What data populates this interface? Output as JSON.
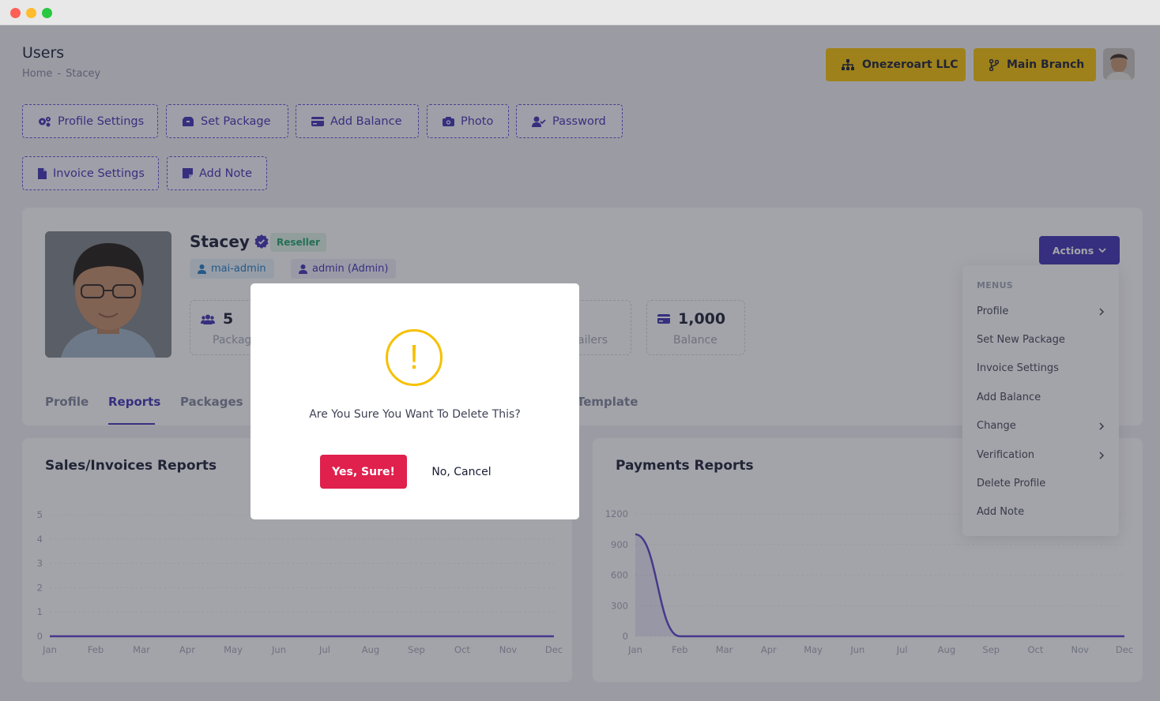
{
  "window": {
    "controls": [
      "close",
      "minimize",
      "maximize"
    ]
  },
  "header": {
    "title": "Users",
    "breadcrumb": [
      "Home",
      "-",
      "Stacey"
    ],
    "company_button": "Onezeroart LLC",
    "branch_button": "Main Branch",
    "accent_color": "#f6c000"
  },
  "toolbar": {
    "row1": [
      "Profile Settings",
      "Set Package",
      "Add Balance",
      "Photo",
      "Password"
    ],
    "row2": [
      "Invoice Settings",
      "Add Note"
    ],
    "accent_color": "#3e2fb5"
  },
  "profile": {
    "name": "Stacey",
    "role_badge": "Reseller",
    "chip_user": "mai-admin",
    "chip_admin": "admin (Admin)",
    "stats": [
      {
        "value": "5",
        "label": "Packag"
      },
      {
        "value": "",
        "label": "ailers"
      },
      {
        "value": "1,000",
        "label": "Balance"
      }
    ]
  },
  "tabs": [
    "Profile",
    "Reports",
    "Packages",
    "Template"
  ],
  "active_tab": "Reports",
  "actions": {
    "label": "Actions",
    "menu_header": "MENUS",
    "items": [
      {
        "label": "Profile",
        "submenu": true
      },
      {
        "label": "Set New Package",
        "submenu": false
      },
      {
        "label": "Invoice Settings",
        "submenu": false
      },
      {
        "label": "Add Balance",
        "submenu": false
      },
      {
        "label": "Change",
        "submenu": true
      },
      {
        "label": "Verification",
        "submenu": true
      },
      {
        "label": "Delete Profile",
        "submenu": false
      },
      {
        "label": "Add Note",
        "submenu": false
      }
    ]
  },
  "reports": {
    "sales_title": "Sales/Invoices Reports",
    "payments_title": "Payments Reports"
  },
  "chart_data": [
    {
      "type": "line",
      "title": "Sales/Invoices Reports",
      "categories": [
        "Jan",
        "Feb",
        "Mar",
        "Apr",
        "May",
        "Jun",
        "Jul",
        "Aug",
        "Sep",
        "Oct",
        "Nov",
        "Dec"
      ],
      "values": [
        0,
        0,
        0,
        0,
        0,
        0,
        0,
        0,
        0,
        0,
        0,
        0
      ],
      "yticks": [
        "5",
        "4",
        "3",
        "2",
        "1",
        "0"
      ],
      "ylim": [
        0,
        5
      ],
      "color": "#5b3fc9",
      "grid": true
    },
    {
      "type": "area",
      "title": "Payments Reports",
      "categories": [
        "Jan",
        "Feb",
        "Mar",
        "Apr",
        "May",
        "Jun",
        "Jul",
        "Aug",
        "Sep",
        "Oct",
        "Nov",
        "Dec"
      ],
      "values": [
        1000,
        0,
        0,
        0,
        0,
        0,
        0,
        0,
        0,
        0,
        0,
        0
      ],
      "yticks": [
        "1200",
        "900",
        "600",
        "300",
        "0"
      ],
      "ylim": [
        0,
        1200
      ],
      "color": "#5b3fc9",
      "grid": true
    }
  ],
  "modal": {
    "icon": "!",
    "message": "Are You Sure You Want To Delete This?",
    "confirm_label": "Yes, Sure!",
    "cancel_label": "No, Cancel",
    "confirm_color": "#e0204d"
  }
}
